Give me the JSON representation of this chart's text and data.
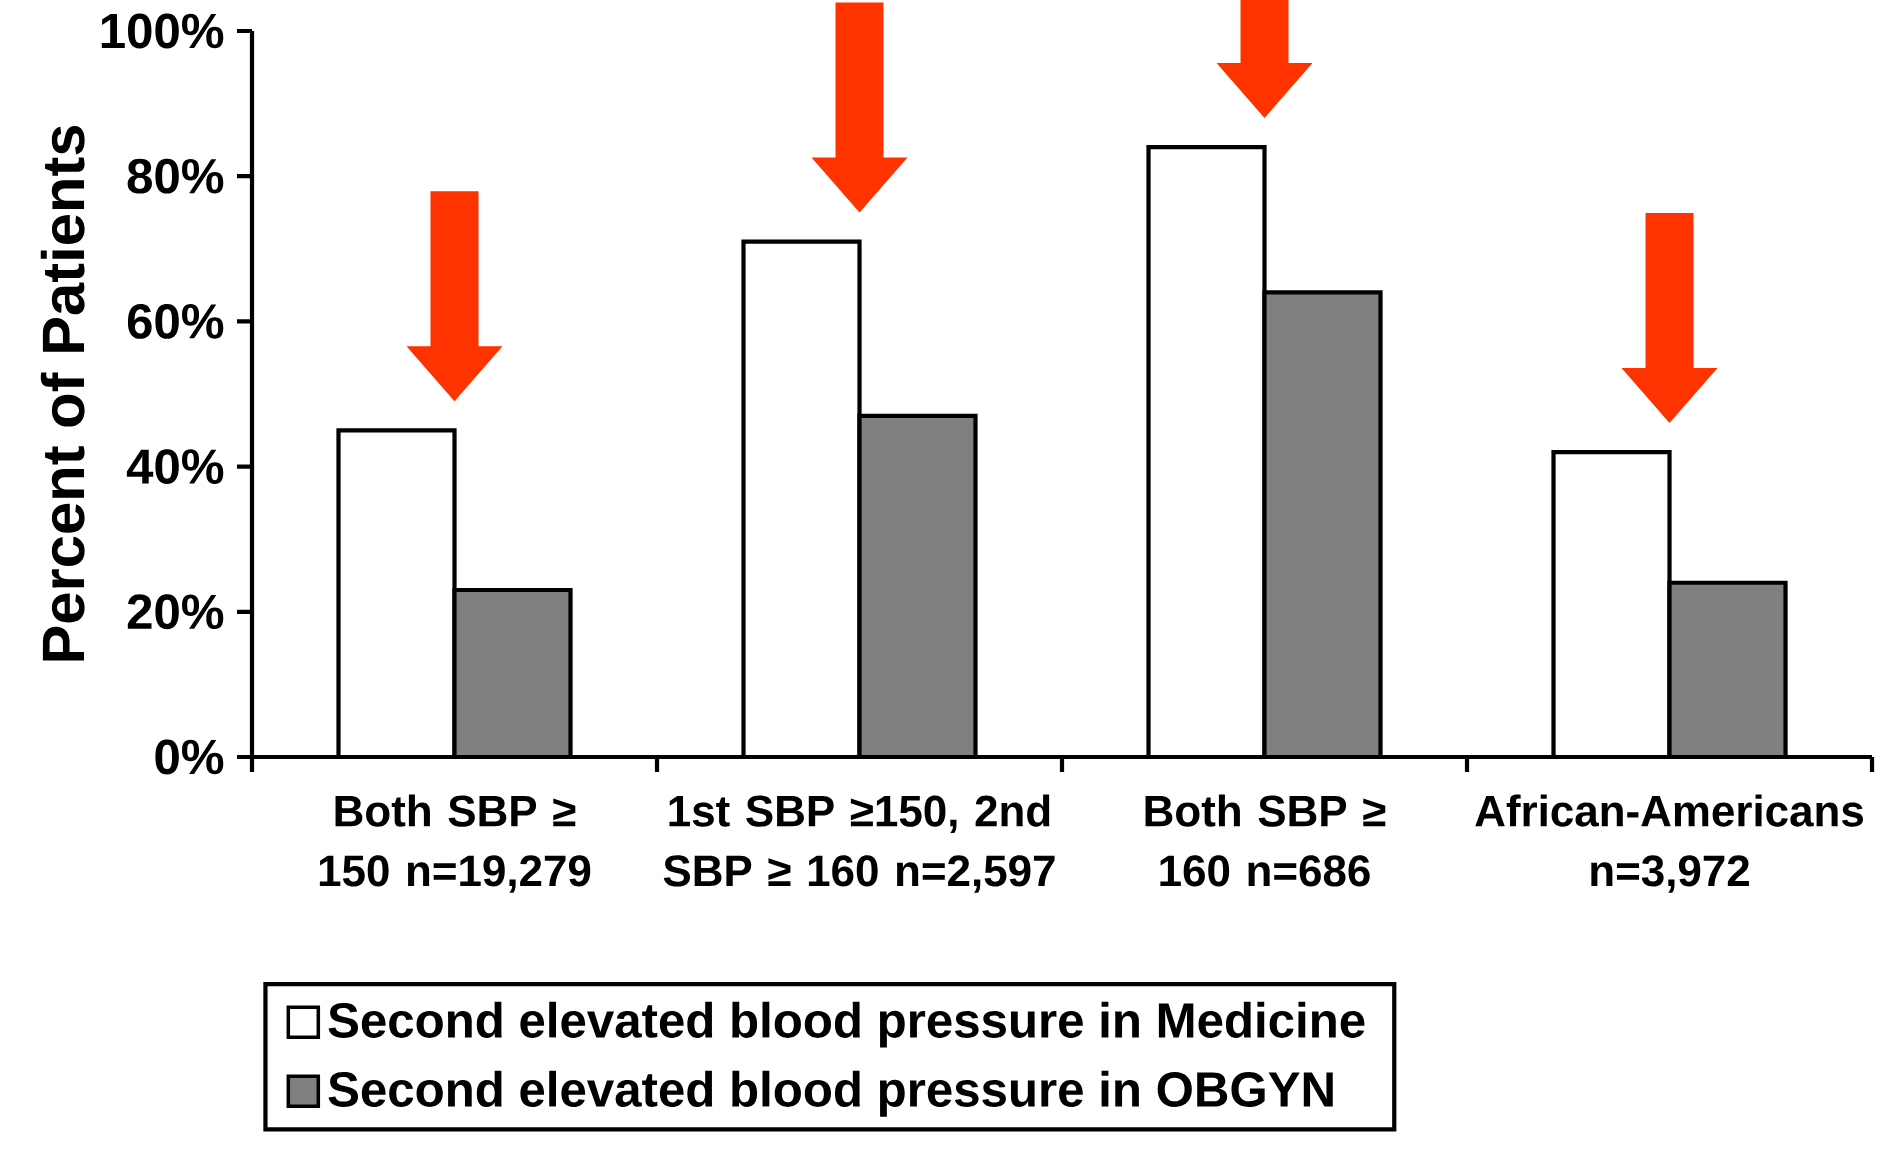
{
  "chart_data": {
    "type": "bar",
    "ylabel": "Percent of Patients",
    "categories": [
      "Both SBP ≥ 150 n=19,279",
      "1st SBP ≥150, 2nd SBP ≥ 160 n=2,597",
      "Both SBP ≥ 160 n=686",
      "African-Americans n=3,972"
    ],
    "series": [
      {
        "name": "Second elevated blood pressure in Medicine",
        "color": "#ffffff",
        "values": [
          45,
          71,
          84,
          42
        ]
      },
      {
        "name": "Second elevated blood pressure in OBGYN",
        "color": "#808080",
        "values": [
          23,
          47,
          64,
          24
        ]
      }
    ],
    "ylim": [
      0,
      100
    ],
    "yticks": [
      {
        "value": 0,
        "label": "0%"
      },
      {
        "value": 20,
        "label": "20%"
      },
      {
        "value": 40,
        "label": "40%"
      },
      {
        "value": 60,
        "label": "60%"
      },
      {
        "value": 80,
        "label": "80%"
      },
      {
        "value": 100,
        "label": "100%"
      }
    ],
    "grid": false,
    "legend": "bottom"
  }
}
